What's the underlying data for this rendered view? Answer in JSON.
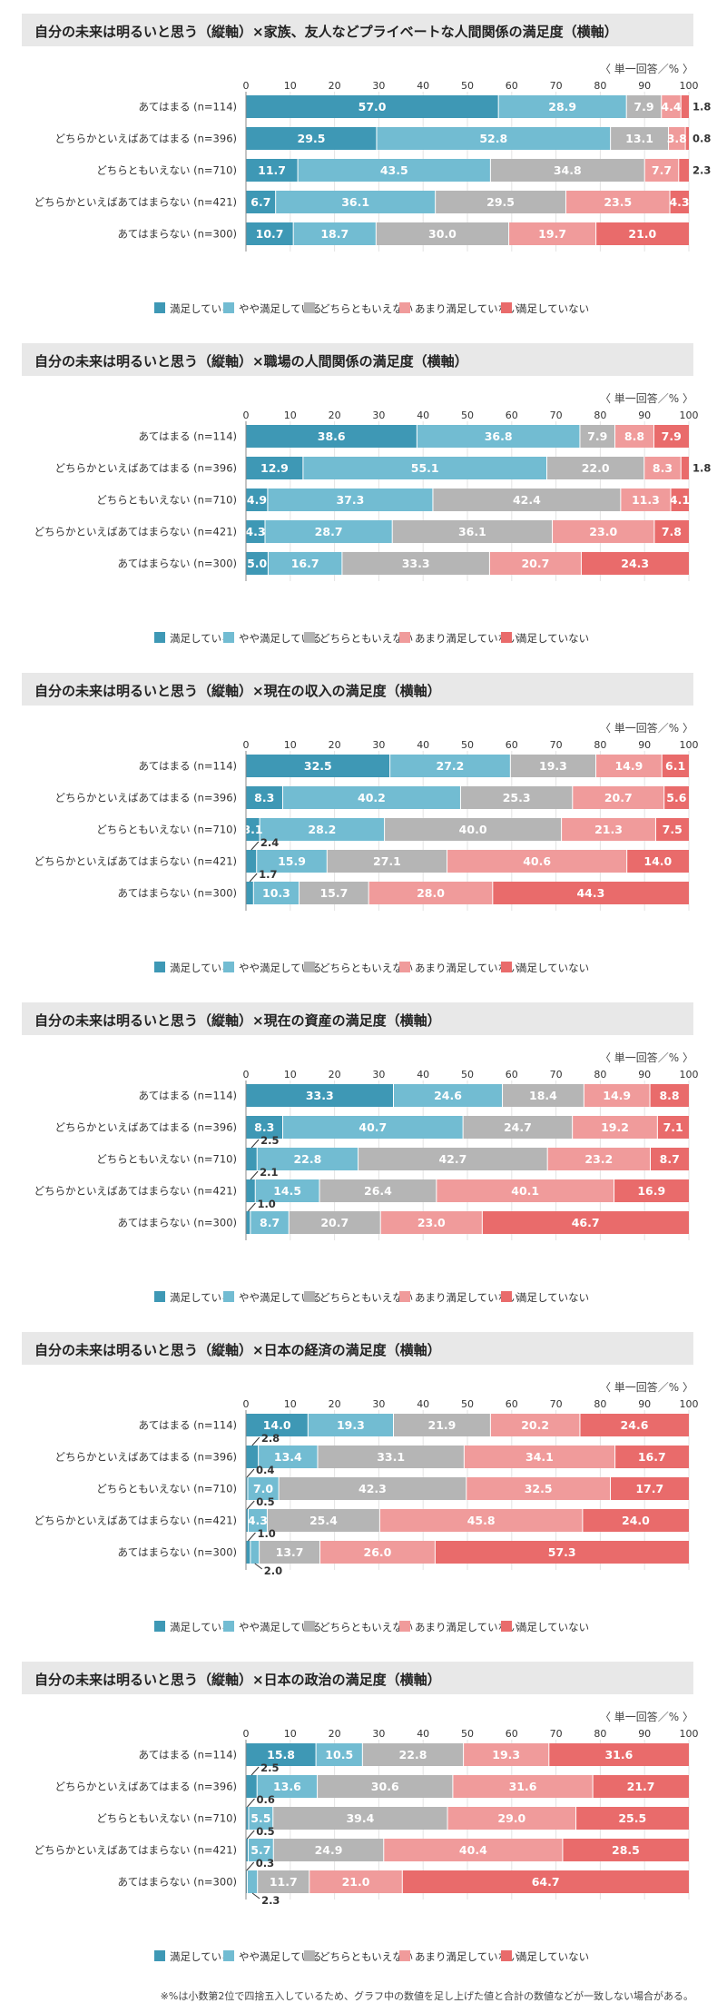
{
  "unit": "〈 単一回答／% 〉",
  "footnote": "※%は小数第2位で四捨五入しているため、グラフ中の数値を足し上げた値と合計の数値などが一致しない場合がある。",
  "axis_ticks": [
    "0",
    "10",
    "20",
    "30",
    "40",
    "50",
    "60",
    "70",
    "80",
    "90",
    "100"
  ],
  "legend": [
    "満足している",
    "やや満足している",
    "どちらともいえない",
    "あまり満足していない",
    "満足していない"
  ],
  "colors": [
    "#3e98b5",
    "#72bcd2",
    "#b5b5b5",
    "#f09b9b",
    "#e96b6b"
  ],
  "chart_data": [
    {
      "type": "bar",
      "title": "自分の未来は明るいと思う（縦軸）×家族、友人などプライベートな人間関係の満足度（横軸）",
      "categories": [
        "あてはまる (n=114)",
        "どちらかといえばあてはまる (n=396)",
        "どちらともいえない (n=710)",
        "どちらかといえばあてはまらない (n=421)",
        "あてはまらない (n=300)"
      ],
      "xlim": [
        0,
        100
      ],
      "series": [
        {
          "name": "満足している",
          "values": [
            57.0,
            29.5,
            11.7,
            6.7,
            10.7
          ]
        },
        {
          "name": "やや満足している",
          "values": [
            28.9,
            52.8,
            43.5,
            36.1,
            18.7
          ]
        },
        {
          "name": "どちらともいえない",
          "values": [
            7.9,
            13.1,
            34.8,
            29.5,
            30.0
          ]
        },
        {
          "name": "あまり満足していない",
          "values": [
            4.4,
            3.8,
            7.7,
            23.5,
            19.7
          ]
        },
        {
          "name": "満足していない",
          "values": [
            1.8,
            0.8,
            2.3,
            4.3,
            21.0
          ]
        }
      ],
      "labels": [
        [
          "57.0",
          "28.9",
          "7.9",
          "4.4",
          "1.8"
        ],
        [
          "29.5",
          "52.8",
          "13.1",
          "3.8",
          "0.8"
        ],
        [
          "11.7",
          "43.5",
          "34.8",
          "7.7",
          "2.3"
        ],
        [
          "6.7",
          "36.1",
          "29.5",
          "23.5",
          "4.3"
        ],
        [
          "10.7",
          "18.7",
          "30.0",
          "19.7",
          "21.0"
        ]
      ]
    },
    {
      "type": "bar",
      "title": "自分の未来は明るいと思う（縦軸）×職場の人間関係の満足度（横軸）",
      "categories": [
        "あてはまる (n=114)",
        "どちらかといえばあてはまる (n=396)",
        "どちらともいえない (n=710)",
        "どちらかといえばあてはまらない (n=421)",
        "あてはまらない (n=300)"
      ],
      "xlim": [
        0,
        100
      ],
      "series": [
        {
          "name": "満足している",
          "values": [
            38.6,
            12.9,
            4.9,
            4.3,
            5.0
          ]
        },
        {
          "name": "やや満足している",
          "values": [
            36.8,
            55.1,
            37.3,
            28.7,
            16.7
          ]
        },
        {
          "name": "どちらともいえない",
          "values": [
            7.9,
            22.0,
            42.4,
            36.1,
            33.3
          ]
        },
        {
          "name": "あまり満足していない",
          "values": [
            8.8,
            8.3,
            11.3,
            23.0,
            20.7
          ]
        },
        {
          "name": "満足していない",
          "values": [
            7.9,
            1.8,
            4.1,
            7.8,
            24.3
          ]
        }
      ],
      "labels": [
        [
          "38.6",
          "36.8",
          "7.9",
          "8.8",
          "7.9"
        ],
        [
          "12.9",
          "55.1",
          "22.0",
          "8.3",
          "1.8"
        ],
        [
          "4.9",
          "37.3",
          "42.4",
          "11.3",
          "4.1"
        ],
        [
          "4.3",
          "28.7",
          "36.1",
          "23.0",
          "7.8"
        ],
        [
          "5.0",
          "16.7",
          "33.3",
          "20.7",
          "24.3"
        ]
      ]
    },
    {
      "type": "bar",
      "title": "自分の未来は明るいと思う（縦軸）×現在の収入の満足度（横軸）",
      "categories": [
        "あてはまる (n=114)",
        "どちらかといえばあてはまる (n=396)",
        "どちらともいえない (n=710)",
        "どちらかといえばあてはまらない (n=421)",
        "あてはまらない (n=300)"
      ],
      "xlim": [
        0,
        100
      ],
      "series": [
        {
          "name": "満足している",
          "values": [
            32.5,
            8.3,
            3.1,
            2.4,
            1.7
          ]
        },
        {
          "name": "やや満足している",
          "values": [
            27.2,
            40.2,
            28.2,
            15.9,
            10.3
          ]
        },
        {
          "name": "どちらともいえない",
          "values": [
            19.3,
            25.3,
            40.0,
            27.1,
            15.7
          ]
        },
        {
          "name": "あまり満足していない",
          "values": [
            14.9,
            20.7,
            21.3,
            40.6,
            28.0
          ]
        },
        {
          "name": "満足していない",
          "values": [
            6.1,
            5.6,
            7.5,
            14.0,
            44.3
          ]
        }
      ],
      "labels": [
        [
          "32.5",
          "27.2",
          "19.3",
          "14.9",
          "6.1"
        ],
        [
          "8.3",
          "40.2",
          "25.3",
          "20.7",
          "5.6"
        ],
        [
          "3.1",
          "28.2",
          "40.0",
          "21.3",
          "7.5"
        ],
        [
          "2.4",
          "15.9",
          "27.1",
          "40.6",
          "14.0"
        ],
        [
          "1.7",
          "10.3",
          "15.7",
          "28.0",
          "44.3"
        ]
      ]
    },
    {
      "type": "bar",
      "title": "自分の未来は明るいと思う（縦軸）×現在の資産の満足度（横軸）",
      "categories": [
        "あてはまる (n=114)",
        "どちらかといえばあてはまる (n=396)",
        "どちらともいえない (n=710)",
        "どちらかといえばあてはまらない (n=421)",
        "あてはまらない (n=300)"
      ],
      "xlim": [
        0,
        100
      ],
      "series": [
        {
          "name": "満足している",
          "values": [
            33.3,
            8.3,
            2.5,
            2.1,
            1.0
          ]
        },
        {
          "name": "やや満足している",
          "values": [
            24.6,
            40.7,
            22.8,
            14.5,
            8.7
          ]
        },
        {
          "name": "どちらともいえない",
          "values": [
            18.4,
            24.7,
            42.7,
            26.4,
            20.7
          ]
        },
        {
          "name": "あまり満足していない",
          "values": [
            14.9,
            19.2,
            23.2,
            40.1,
            23.0
          ]
        },
        {
          "name": "満足していない",
          "values": [
            8.8,
            7.1,
            8.7,
            16.9,
            46.7
          ]
        }
      ],
      "labels": [
        [
          "33.3",
          "24.6",
          "18.4",
          "14.9",
          "8.8"
        ],
        [
          "8.3",
          "40.7",
          "24.7",
          "19.2",
          "7.1"
        ],
        [
          "2.5",
          "22.8",
          "42.7",
          "23.2",
          "8.7"
        ],
        [
          "2.1",
          "14.5",
          "26.4",
          "40.1",
          "16.9"
        ],
        [
          "1.0",
          "8.7",
          "20.7",
          "23.0",
          "46.7"
        ]
      ]
    },
    {
      "type": "bar",
      "title": "自分の未来は明るいと思う（縦軸）×日本の経済の満足度（横軸）",
      "categories": [
        "あてはまる (n=114)",
        "どちらかといえばあてはまる (n=396)",
        "どちらともいえない (n=710)",
        "どちらかといえばあてはまらない (n=421)",
        "あてはまらない (n=300)"
      ],
      "xlim": [
        0,
        100
      ],
      "series": [
        {
          "name": "満足している",
          "values": [
            14.0,
            2.8,
            0.4,
            0.5,
            1.0
          ]
        },
        {
          "name": "やや満足している",
          "values": [
            19.3,
            13.4,
            7.0,
            4.3,
            2.0
          ]
        },
        {
          "name": "どちらともいえない",
          "values": [
            21.9,
            33.1,
            42.3,
            25.4,
            13.7
          ]
        },
        {
          "name": "あまり満足していない",
          "values": [
            20.2,
            34.1,
            32.5,
            45.8,
            26.0
          ]
        },
        {
          "name": "満足していない",
          "values": [
            24.6,
            16.7,
            17.7,
            24.0,
            57.3
          ]
        }
      ],
      "labels": [
        [
          "14.0",
          "19.3",
          "21.9",
          "20.2",
          "24.6"
        ],
        [
          "2.8",
          "13.4",
          "33.1",
          "34.1",
          "16.7"
        ],
        [
          "0.4",
          "7.0",
          "42.3",
          "32.5",
          "17.7"
        ],
        [
          "0.5",
          "4.3",
          "25.4",
          "45.8",
          "24.0"
        ],
        [
          "1.0",
          "2.0",
          "13.7",
          "26.0",
          "57.3"
        ]
      ]
    },
    {
      "type": "bar",
      "title": "自分の未来は明るいと思う（縦軸）×日本の政治の満足度（横軸）",
      "categories": [
        "あてはまる (n=114)",
        "どちらかといえばあてはまる (n=396)",
        "どちらともいえない (n=710)",
        "どちらかといえばあてはまらない (n=421)",
        "あてはまらない (n=300)"
      ],
      "xlim": [
        0,
        100
      ],
      "series": [
        {
          "name": "満足している",
          "values": [
            15.8,
            2.5,
            0.6,
            0.5,
            0.3
          ]
        },
        {
          "name": "やや満足している",
          "values": [
            10.5,
            13.6,
            5.5,
            5.7,
            2.3
          ]
        },
        {
          "name": "どちらともいえない",
          "values": [
            22.8,
            30.6,
            39.4,
            24.9,
            11.7
          ]
        },
        {
          "name": "あまり満足していない",
          "values": [
            19.3,
            31.6,
            29.0,
            40.4,
            21.0
          ]
        },
        {
          "name": "満足していない",
          "values": [
            31.6,
            21.7,
            25.5,
            28.5,
            64.7
          ]
        }
      ],
      "labels": [
        [
          "15.8",
          "10.5",
          "22.8",
          "19.3",
          "31.6"
        ],
        [
          "2.5",
          "13.6",
          "30.6",
          "31.6",
          "21.7"
        ],
        [
          "0.6",
          "5.5",
          "39.4",
          "29.0",
          "25.5"
        ],
        [
          "0.5",
          "5.7",
          "24.9",
          "40.4",
          "28.5"
        ],
        [
          "0.3",
          "2.3",
          "11.7",
          "21.0",
          "64.7"
        ]
      ]
    }
  ]
}
